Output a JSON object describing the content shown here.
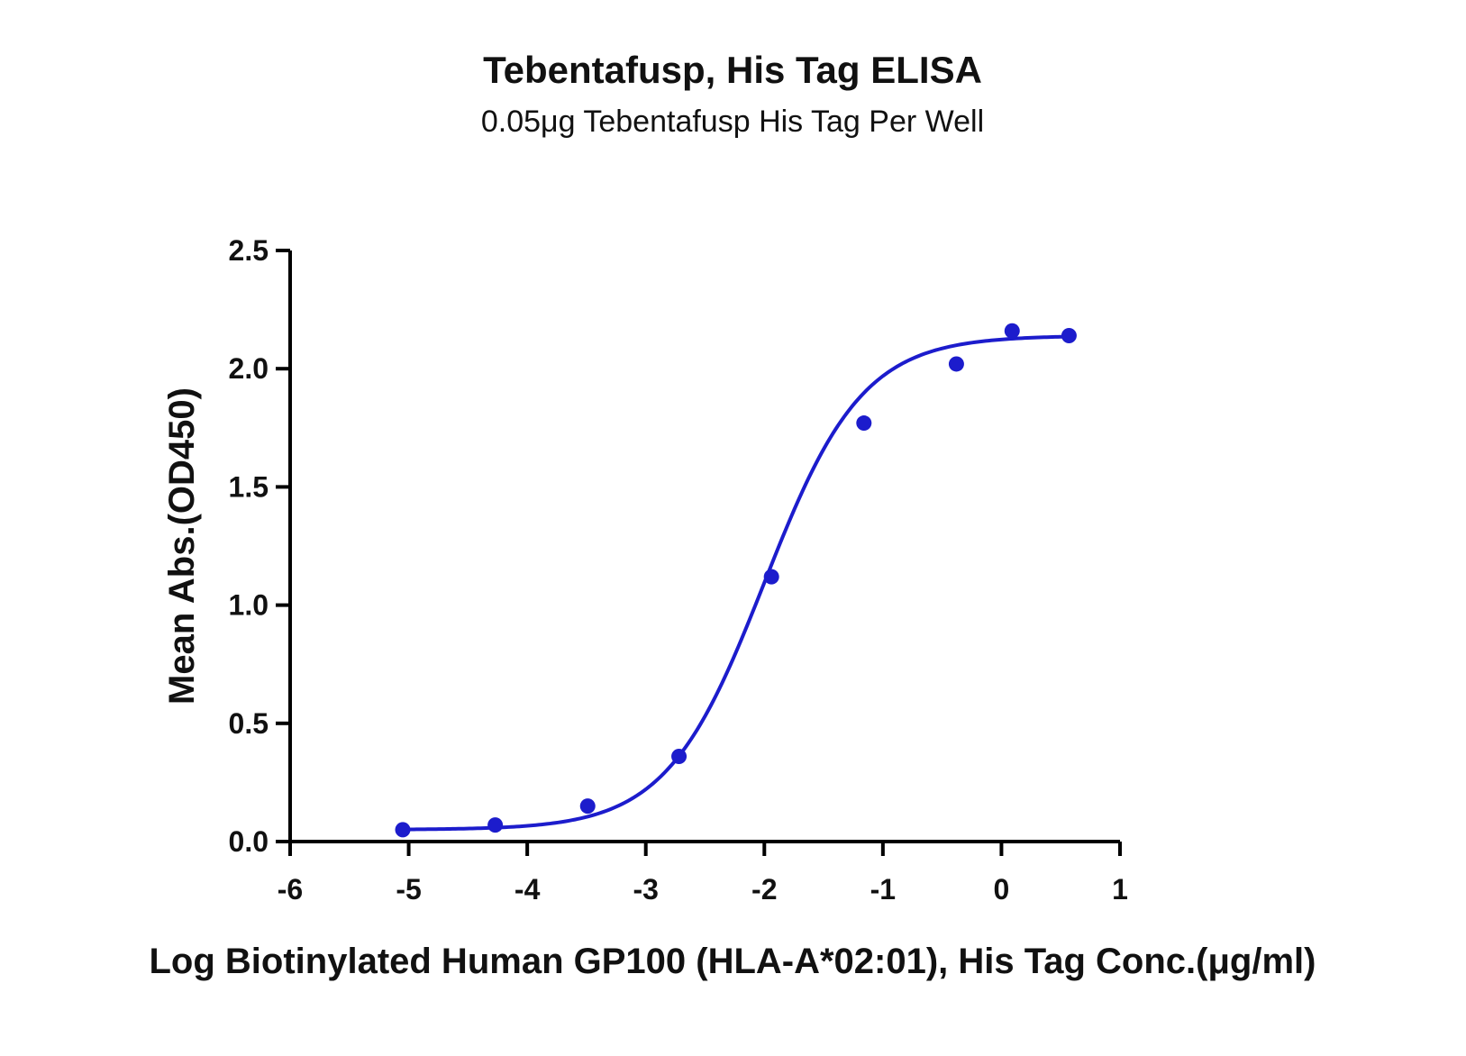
{
  "chart_data": {
    "type": "scatter",
    "title": "Tebentafusp, His Tag ELISA",
    "subtitle": "0.05μg Tebentafusp His Tag Per Well",
    "xlabel": "Log Biotinylated Human GP100 (HLA-A*02:01), His Tag Conc.(μg/ml)",
    "ylabel": "Mean Abs.(OD450)",
    "xlim": [
      -6,
      1
    ],
    "ylim": [
      0,
      2.5
    ],
    "x_ticks": [
      "-6",
      "-5",
      "-4",
      "-3",
      "-2",
      "-1",
      "0",
      "1"
    ],
    "y_ticks": [
      "0.0",
      "0.5",
      "1.0",
      "1.5",
      "2.0",
      "2.5"
    ],
    "grid": false,
    "legend": "none",
    "series": [
      {
        "marker_color": "#1c1ccc",
        "points": [
          {
            "x": -5.05,
            "y": 0.05
          },
          {
            "x": -4.27,
            "y": 0.07
          },
          {
            "x": -3.49,
            "y": 0.15
          },
          {
            "x": -2.72,
            "y": 0.36
          },
          {
            "x": -1.94,
            "y": 1.12
          },
          {
            "x": -1.16,
            "y": 1.77
          },
          {
            "x": -0.38,
            "y": 2.02
          },
          {
            "x": 0.09,
            "y": 2.16
          },
          {
            "x": 0.57,
            "y": 2.14
          }
        ],
        "fit": {
          "model": "4PL",
          "bottom": 0.05,
          "top": 2.14,
          "log_ec50": -2.0,
          "hill": 1.05,
          "x_range": [
            -5.05,
            0.57
          ]
        }
      }
    ]
  }
}
